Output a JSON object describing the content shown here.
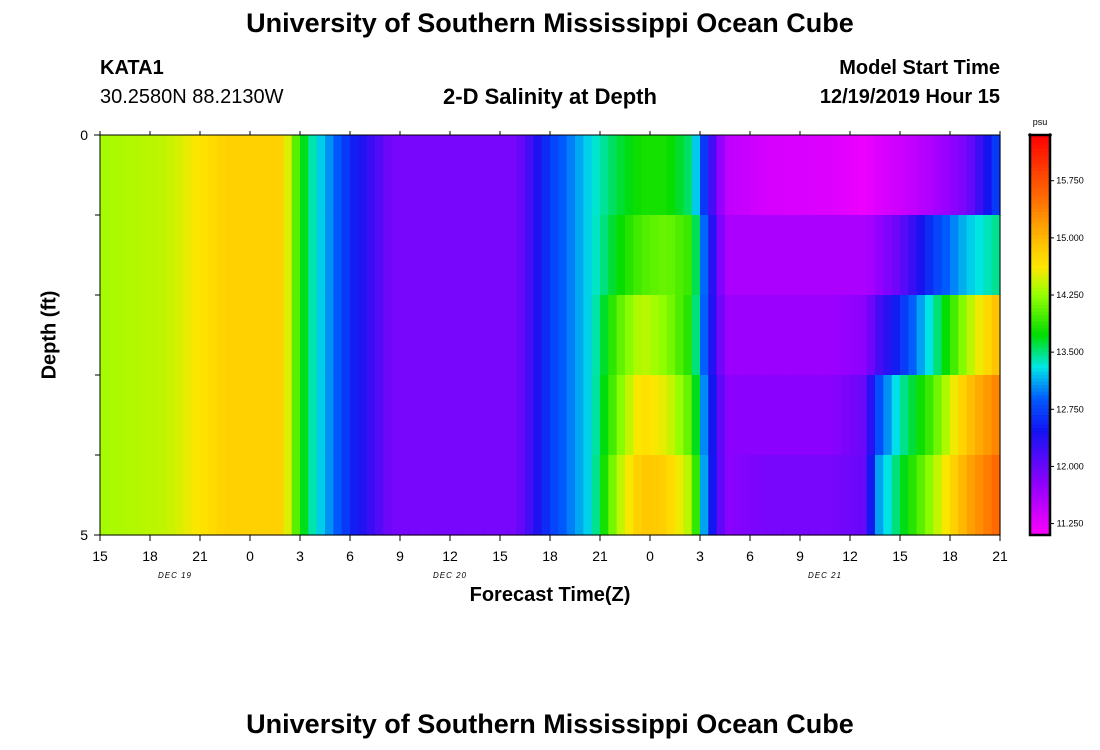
{
  "page": {
    "title_top": "University of Southern Mississippi Ocean Cube",
    "title_bottom": "University of Southern Mississippi Ocean Cube",
    "station_id": "KATA1",
    "coordinates": "30.2580N 88.2130W",
    "plot_title": "2-D Salinity at Depth",
    "model_start_label": "Model Start Time",
    "model_start_value": "12/19/2019 Hour 15"
  },
  "chart_data": {
    "type": "heatmap",
    "title": "2-D Salinity at Depth",
    "xlabel": "Forecast Time(Z)",
    "ylabel": "Depth (ft)",
    "x_range_hours": [
      0,
      54
    ],
    "x_ticks": [
      {
        "h": 0,
        "label": "15"
      },
      {
        "h": 3,
        "label": "18"
      },
      {
        "h": 6,
        "label": "21"
      },
      {
        "h": 9,
        "label": "0"
      },
      {
        "h": 12,
        "label": "3"
      },
      {
        "h": 15,
        "label": "6"
      },
      {
        "h": 18,
        "label": "9"
      },
      {
        "h": 21,
        "label": "12"
      },
      {
        "h": 24,
        "label": "15"
      },
      {
        "h": 27,
        "label": "18"
      },
      {
        "h": 30,
        "label": "21"
      },
      {
        "h": 33,
        "label": "0"
      },
      {
        "h": 36,
        "label": "3"
      },
      {
        "h": 39,
        "label": "6"
      },
      {
        "h": 42,
        "label": "9"
      },
      {
        "h": 45,
        "label": "12"
      },
      {
        "h": 48,
        "label": "15"
      },
      {
        "h": 51,
        "label": "18"
      },
      {
        "h": 54,
        "label": "21"
      }
    ],
    "date_labels": [
      {
        "h": 4.5,
        "label": "DEC 19"
      },
      {
        "h": 21,
        "label": "DEC 20"
      },
      {
        "h": 43.5,
        "label": "DEC 21"
      }
    ],
    "y_range": [
      0,
      5
    ],
    "y_tick_labels": [
      {
        "value": 0,
        "label": "0"
      },
      {
        "value": 5,
        "label": "5"
      }
    ],
    "y_minor_ticks": [
      1,
      2,
      3,
      4
    ],
    "depth_layers": 5,
    "colorbar": {
      "unit": "psu",
      "min": 11.1,
      "max": 16.35,
      "ticks": [
        "11.250",
        "12.000",
        "12.750",
        "13.500",
        "14.250",
        "15.000",
        "15.750"
      ],
      "tick_values": [
        11.25,
        12.0,
        12.75,
        13.5,
        14.25,
        15.0,
        15.75
      ]
    },
    "keyframes": [
      {
        "h": 0,
        "values": [
          14.3,
          14.3,
          14.3,
          14.3,
          14.3
        ]
      },
      {
        "h": 4,
        "values": [
          14.4,
          14.4,
          14.4,
          14.4,
          14.4
        ]
      },
      {
        "h": 7.5,
        "values": [
          14.8,
          14.8,
          14.8,
          14.8,
          14.8
        ]
      },
      {
        "h": 11,
        "values": [
          14.8,
          14.8,
          14.8,
          14.8,
          14.8
        ]
      },
      {
        "h": 11.5,
        "values": [
          14.2,
          14.2,
          14.2,
          14.2,
          14.2
        ]
      },
      {
        "h": 12.5,
        "values": [
          13.5,
          13.5,
          13.5,
          13.5,
          13.5
        ]
      },
      {
        "h": 15,
        "values": [
          12.6,
          12.6,
          12.6,
          12.6,
          12.6
        ]
      },
      {
        "h": 17.5,
        "values": [
          11.9,
          11.9,
          11.9,
          11.9,
          11.9
        ]
      },
      {
        "h": 25,
        "values": [
          11.9,
          11.9,
          11.9,
          11.9,
          11.9
        ]
      },
      {
        "h": 27,
        "values": [
          12.7,
          12.7,
          12.7,
          12.7,
          12.7
        ]
      },
      {
        "h": 29.5,
        "values": [
          13.3,
          13.3,
          13.3,
          13.3,
          13.3
        ]
      },
      {
        "h": 31,
        "values": [
          13.6,
          13.7,
          14.0,
          14.1,
          14.3
        ]
      },
      {
        "h": 32.5,
        "values": [
          13.8,
          14.0,
          14.4,
          14.7,
          14.9
        ]
      },
      {
        "h": 34,
        "values": [
          13.8,
          14.1,
          14.2,
          14.5,
          14.8
        ]
      },
      {
        "h": 35.5,
        "values": [
          13.5,
          13.9,
          13.8,
          14.0,
          14.3
        ]
      },
      {
        "h": 36.5,
        "values": [
          12.4,
          12.6,
          12.6,
          12.7,
          12.7
        ]
      },
      {
        "h": 37.5,
        "values": [
          11.5,
          11.6,
          11.7,
          11.8,
          11.8
        ]
      },
      {
        "h": 40,
        "values": [
          11.35,
          11.6,
          11.7,
          11.8,
          11.9
        ]
      },
      {
        "h": 44,
        "values": [
          11.3,
          11.6,
          11.7,
          11.8,
          11.9
        ]
      },
      {
        "h": 46,
        "values": [
          11.2,
          11.6,
          11.8,
          12.0,
          12.0
        ]
      },
      {
        "h": 46.5,
        "values": [
          11.3,
          11.7,
          12.1,
          12.7,
          13.0
        ]
      },
      {
        "h": 48,
        "values": [
          11.4,
          12.0,
          12.6,
          13.4,
          13.6
        ]
      },
      {
        "h": 50,
        "values": [
          11.6,
          12.7,
          13.4,
          14.0,
          14.3
        ]
      },
      {
        "h": 52,
        "values": [
          11.9,
          13.2,
          14.3,
          14.9,
          15.1
        ]
      },
      {
        "h": 54,
        "values": [
          12.8,
          13.5,
          15.0,
          15.4,
          15.6
        ]
      }
    ]
  }
}
